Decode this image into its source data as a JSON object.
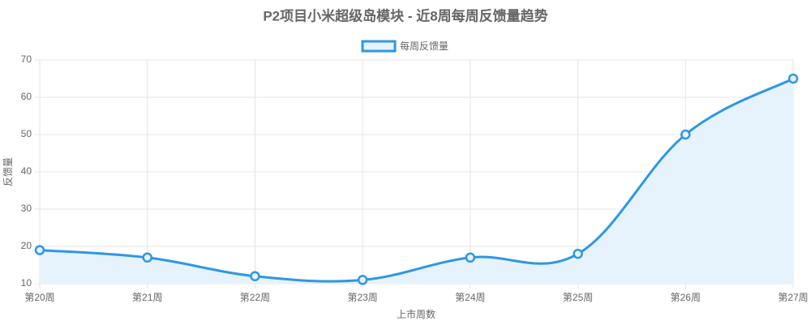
{
  "chart_data": {
    "type": "line",
    "title": "P2项目小米超级岛模块 - 近8周每周反馈量趋势",
    "x_label": "上市周数",
    "y_label": "反馈量",
    "categories": [
      "第20周",
      "第21周",
      "第22周",
      "第23周",
      "第24周",
      "第25周",
      "第26周",
      "第27周"
    ],
    "series": [
      {
        "name": "每周反馈量",
        "color": "#2f96e6",
        "fill_color": "#e6f3fc",
        "values": [
          19,
          17,
          12,
          11,
          17,
          18,
          50,
          65
        ]
      }
    ],
    "ylim": [
      10,
      70
    ],
    "yticks": [
      10,
      20,
      30,
      40,
      50,
      60,
      70
    ],
    "grid": true,
    "legend": "top",
    "fill": true
  }
}
